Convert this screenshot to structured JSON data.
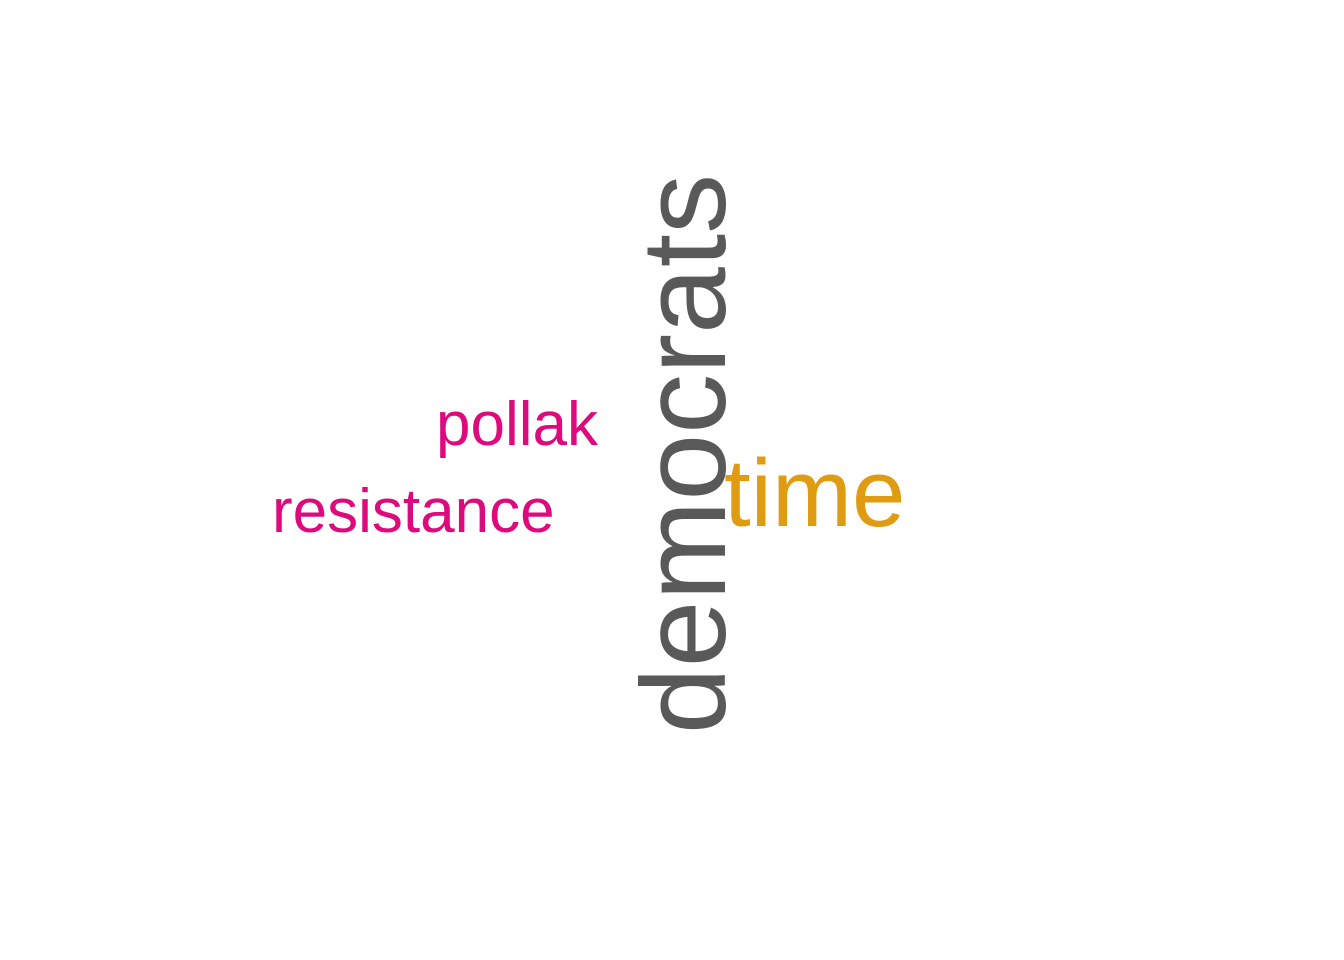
{
  "words": [
    {
      "text": "democrats",
      "color": "#595959",
      "orientation": "vertical"
    },
    {
      "text": "time",
      "color": "#df9c12",
      "orientation": "horizontal"
    },
    {
      "text": "pollak",
      "color": "#de0a7d",
      "orientation": "horizontal"
    },
    {
      "text": "resistance",
      "color": "#de0a7d",
      "orientation": "horizontal"
    }
  ]
}
